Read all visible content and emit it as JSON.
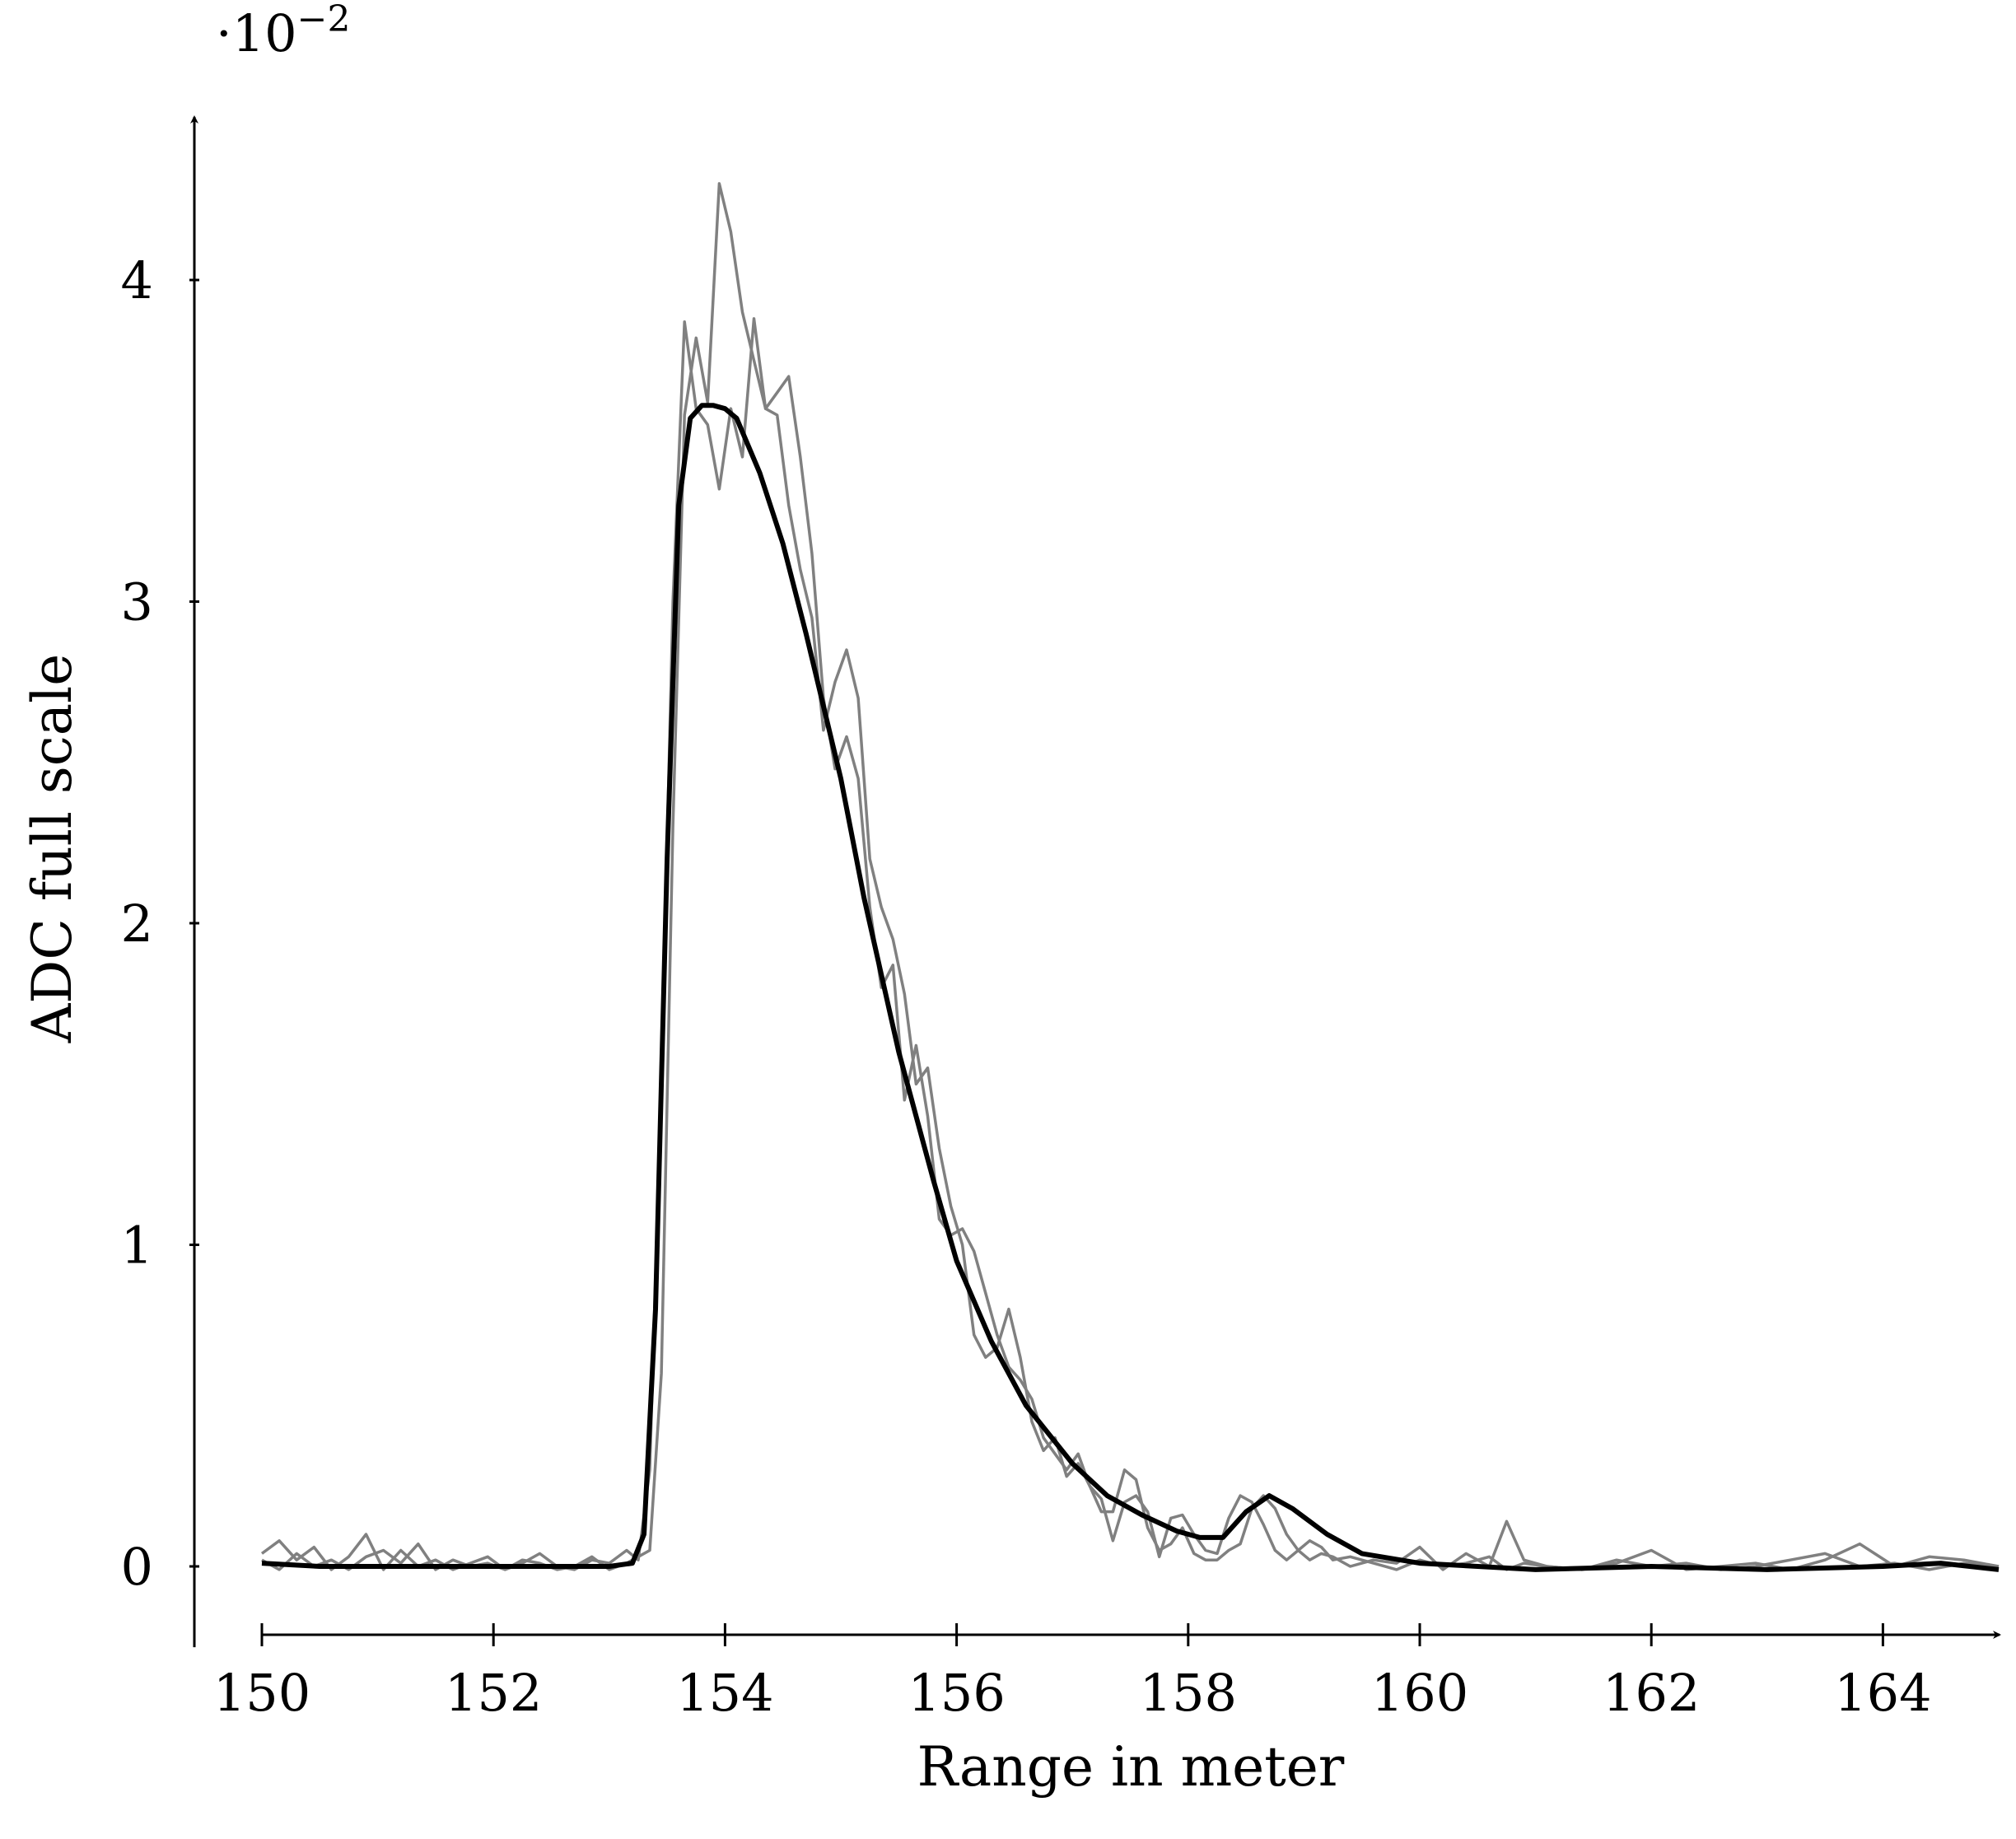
{
  "chart_data": {
    "type": "line",
    "title": "",
    "xlabel": "Range in meter",
    "ylabel": "ADC full scale",
    "y_multiplier": {
      "base": "·10",
      "exponent": "−2"
    },
    "xlim": [
      150,
      165
    ],
    "ylim": [
      -0.2,
      4.5
    ],
    "x_ticks": [
      150,
      152,
      154,
      156,
      158,
      160,
      162,
      164
    ],
    "y_ticks": [
      0,
      1,
      2,
      3,
      4
    ],
    "grid": false,
    "legend": "none",
    "colors": {
      "mean": "#000000",
      "raw": "#808080"
    },
    "series": [
      {
        "style": "mean",
        "x": [
          150,
          150.5,
          151,
          151.5,
          152,
          152.5,
          153,
          153.2,
          153.3,
          153.4,
          153.5,
          153.6,
          153.7,
          153.8,
          153.9,
          154,
          154.1,
          154.3,
          154.5,
          154.7,
          155,
          155.2,
          155.5,
          155.8,
          156,
          156.3,
          156.6,
          157,
          157.3,
          157.6,
          157.9,
          158.1,
          158.3,
          158.5,
          158.7,
          158.9,
          159.2,
          159.5,
          160,
          160.5,
          161,
          162,
          163,
          164,
          164.5,
          165
        ],
        "y": [
          0.01,
          0,
          0,
          0,
          0,
          0,
          0,
          0.01,
          0.1,
          0.8,
          2.2,
          3.3,
          3.57,
          3.61,
          3.61,
          3.6,
          3.57,
          3.4,
          3.18,
          2.9,
          2.45,
          2.08,
          1.6,
          1.2,
          0.95,
          0.7,
          0.5,
          0.32,
          0.22,
          0.16,
          0.11,
          0.09,
          0.09,
          0.17,
          0.22,
          0.18,
          0.1,
          0.04,
          0.01,
          0,
          -0.01,
          0,
          -0.01,
          0,
          0.01,
          -0.01
        ]
      },
      {
        "style": "raw",
        "x": [
          150,
          150.15,
          150.3,
          150.45,
          150.6,
          150.75,
          150.9,
          151.05,
          151.2,
          151.35,
          151.5,
          151.65,
          151.8,
          151.95,
          152.1,
          152.25,
          152.4,
          152.55,
          152.7,
          152.85,
          153,
          153.15,
          153.25,
          153.35,
          153.45,
          153.55,
          153.65,
          153.75,
          153.85,
          153.95,
          154.05,
          154.15,
          154.25,
          154.35,
          154.45,
          154.55,
          154.65,
          154.75,
          154.85,
          154.95,
          155.05,
          155.15,
          155.25,
          155.35,
          155.45,
          155.55,
          155.65,
          155.75,
          155.85,
          155.95,
          156.05,
          156.15,
          156.25,
          156.35,
          156.45,
          156.55,
          156.65,
          156.75,
          156.85,
          156.95,
          157.05,
          157.15,
          157.25,
          157.35,
          157.45,
          157.55,
          157.65,
          157.75,
          157.85,
          157.95,
          158.05,
          158.15,
          158.25,
          158.35,
          158.45,
          158.55,
          158.65,
          158.75,
          158.85,
          158.95,
          159.05,
          159.15,
          159.25,
          159.4,
          159.6,
          159.8,
          160,
          160.2,
          160.4,
          160.6,
          160.75,
          160.9,
          161.1,
          161.4,
          161.7,
          162,
          162.3,
          162.6,
          162.9,
          163.2,
          163.5,
          163.8,
          164.1,
          164.4,
          164.7,
          165
        ],
        "y": [
          0.04,
          0.08,
          0.02,
          0.06,
          -0.01,
          0.03,
          0.1,
          -0.01,
          0.05,
          0,
          0.02,
          -0.01,
          0.01,
          0.03,
          -0.01,
          0.01,
          0.04,
          0,
          -0.01,
          0.02,
          0.01,
          0.05,
          0.02,
          0.3,
          1.5,
          3.0,
          3.87,
          3.6,
          3.55,
          3.35,
          3.6,
          3.45,
          3.88,
          3.6,
          3.65,
          3.7,
          3.45,
          3.15,
          2.7,
          2.48,
          2.58,
          2.45,
          2.05,
          1.8,
          1.87,
          1.45,
          1.62,
          1.4,
          1.08,
          1.03,
          1.05,
          0.98,
          0.85,
          0.72,
          0.62,
          0.58,
          0.52,
          0.4,
          0.35,
          0.3,
          0.35,
          0.25,
          0.17,
          0.17,
          0.3,
          0.27,
          0.12,
          0.05,
          0.07,
          0.12,
          0.04,
          0.02,
          0.02,
          0.05,
          0.07,
          0.18,
          0.22,
          0.18,
          0.1,
          0.05,
          0.02,
          0.04,
          0.03,
          0,
          0.02,
          0.01,
          0.06,
          -0.01,
          0.04,
          0,
          0.14,
          0.02,
          0,
          -0.01,
          0.01,
          0.05,
          -0.01,
          0,
          0.01,
          -0.01,
          0.02,
          0.07,
          0,
          0.03,
          0.02,
          0
        ]
      },
      {
        "style": "raw",
        "x": [
          150,
          150.15,
          150.3,
          150.45,
          150.6,
          150.75,
          150.9,
          151.05,
          151.2,
          151.35,
          151.5,
          151.65,
          151.8,
          151.95,
          152.1,
          152.25,
          152.4,
          152.55,
          152.7,
          152.85,
          153,
          153.15,
          153.25,
          153.35,
          153.45,
          153.55,
          153.65,
          153.75,
          153.85,
          153.95,
          154.05,
          154.15,
          154.25,
          154.35,
          154.45,
          154.55,
          154.65,
          154.75,
          154.85,
          154.95,
          155.05,
          155.15,
          155.25,
          155.35,
          155.45,
          155.55,
          155.65,
          155.75,
          155.85,
          155.95,
          156.05,
          156.15,
          156.25,
          156.35,
          156.45,
          156.55,
          156.65,
          156.75,
          156.85,
          156.95,
          157.05,
          157.15,
          157.25,
          157.35,
          157.45,
          157.55,
          157.65,
          157.75,
          157.85,
          157.95,
          158.05,
          158.15,
          158.25,
          158.35,
          158.45,
          158.55,
          158.65,
          158.75,
          158.85,
          158.95,
          159.05,
          159.15,
          159.25,
          159.4,
          159.6,
          159.8,
          160,
          160.2,
          160.4,
          160.6,
          160.75,
          160.9,
          161.1,
          161.4,
          161.7,
          162,
          162.3,
          162.6,
          162.9,
          163.2,
          163.5,
          163.8,
          164.1,
          164.4,
          164.7,
          165
        ],
        "y": [
          0.02,
          -0.01,
          0.04,
          0,
          0.02,
          -0.01,
          0.03,
          0.05,
          0.01,
          0.07,
          -0.01,
          0.02,
          0,
          0.01,
          -0.01,
          0.02,
          0.01,
          -0.01,
          0,
          0.03,
          -0.01,
          0.01,
          0.03,
          0.05,
          0.6,
          2.3,
          3.58,
          3.82,
          3.62,
          4.3,
          4.15,
          3.9,
          3.75,
          3.6,
          3.58,
          3.3,
          3.1,
          2.95,
          2.6,
          2.75,
          2.85,
          2.7,
          2.2,
          2.05,
          1.95,
          1.78,
          1.5,
          1.55,
          1.3,
          1.12,
          1.0,
          0.72,
          0.65,
          0.68,
          0.8,
          0.65,
          0.45,
          0.36,
          0.4,
          0.28,
          0.32,
          0.25,
          0.21,
          0.08,
          0.2,
          0.22,
          0.17,
          0.03,
          0.15,
          0.16,
          0.1,
          0.05,
          0.04,
          0.15,
          0.22,
          0.2,
          0.13,
          0.05,
          0.02,
          0.05,
          0.08,
          0.06,
          0.02,
          0.03,
          0.01,
          -0.01,
          0.02,
          0,
          0.01,
          0.03,
          -0.01,
          0.01,
          0,
          -0.01,
          0.02,
          0,
          0.01,
          -0.01,
          0,
          0.02,
          0.04,
          0,
          0.01,
          -0.01,
          0.01,
          0
        ]
      }
    ]
  }
}
